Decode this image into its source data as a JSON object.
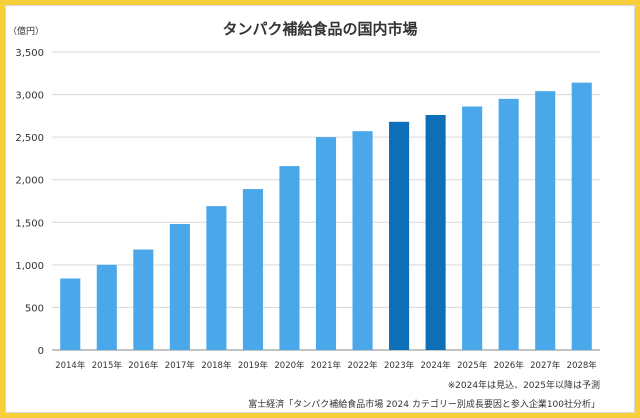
{
  "chart_data": {
    "type": "bar",
    "title": "タンパク補給食品の国内市場",
    "ylabel": "（億円）",
    "ylim": [
      0,
      3500
    ],
    "yticks": [
      0,
      500,
      1000,
      1500,
      2000,
      2500,
      3000,
      3500
    ],
    "ytick_labels": [
      "0",
      "500",
      "1,000",
      "1,500",
      "2,000",
      "2,500",
      "3,000",
      "3,500"
    ],
    "grid": true,
    "categories": [
      "2014年",
      "2015年",
      "2016年",
      "2017年",
      "2018年",
      "2019年",
      "2020年",
      "2021年",
      "2022年",
      "2023年",
      "2024年",
      "2025年",
      "2026年",
      "2027年",
      "2028年"
    ],
    "values": [
      840,
      1000,
      1180,
      1480,
      1690,
      1890,
      2160,
      2500,
      2570,
      2680,
      2760,
      2860,
      2950,
      3040,
      3140
    ],
    "colors": [
      "#4aa8ea",
      "#4aa8ea",
      "#4aa8ea",
      "#4aa8ea",
      "#4aa8ea",
      "#4aa8ea",
      "#4aa8ea",
      "#4aa8ea",
      "#4aa8ea",
      "#0e6fb8",
      "#0e6fb8",
      "#4aa8ea",
      "#4aa8ea",
      "#4aa8ea",
      "#4aa8ea"
    ],
    "annotations": [
      "※2024年は見込、2025年以降は予測"
    ],
    "source": "富士経済「タンパク補給食品市場 2024 カテゴリー別成長要因と参入企業100社分析」"
  }
}
